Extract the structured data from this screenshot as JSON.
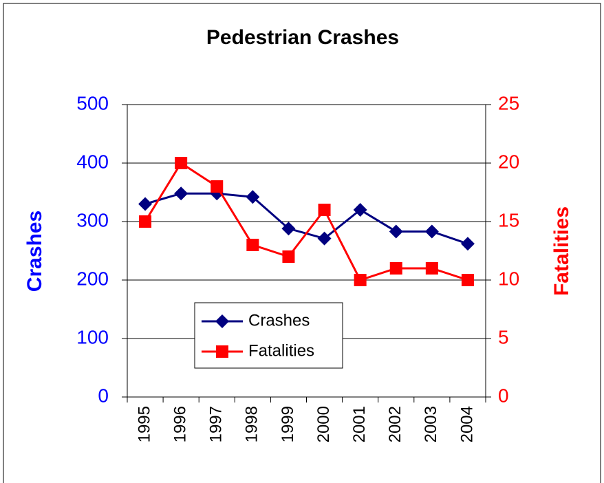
{
  "chart_data": {
    "type": "line",
    "title": "Pedestrian Crashes",
    "y_label": "Crashes",
    "y2_label": "Fatalities",
    "categories": [
      "1995",
      "1996",
      "1997",
      "1998",
      "1999",
      "2000",
      "2001",
      "2002",
      "2003",
      "2004"
    ],
    "series": [
      {
        "name": "Crashes",
        "color": "#000080",
        "marker": "diamond",
        "values": [
          330,
          348,
          348,
          342,
          288,
          271,
          320,
          283,
          283,
          262
        ]
      },
      {
        "name": "Fatalities",
        "color": "#ff0000",
        "marker": "square",
        "axis": "y2",
        "values": [
          15,
          20,
          18,
          13,
          12,
          16,
          10,
          11,
          11,
          10
        ]
      }
    ],
    "ylim": [
      0,
      500
    ],
    "yticks": [
      0,
      100,
      200,
      300,
      400,
      500
    ],
    "y_color": "#0000ff",
    "y2lim": [
      0,
      25
    ],
    "y2ticks": [
      0,
      5,
      10,
      15,
      20,
      25
    ],
    "y2_color": "#ff0000",
    "grid": true,
    "legend": "lower-left"
  }
}
